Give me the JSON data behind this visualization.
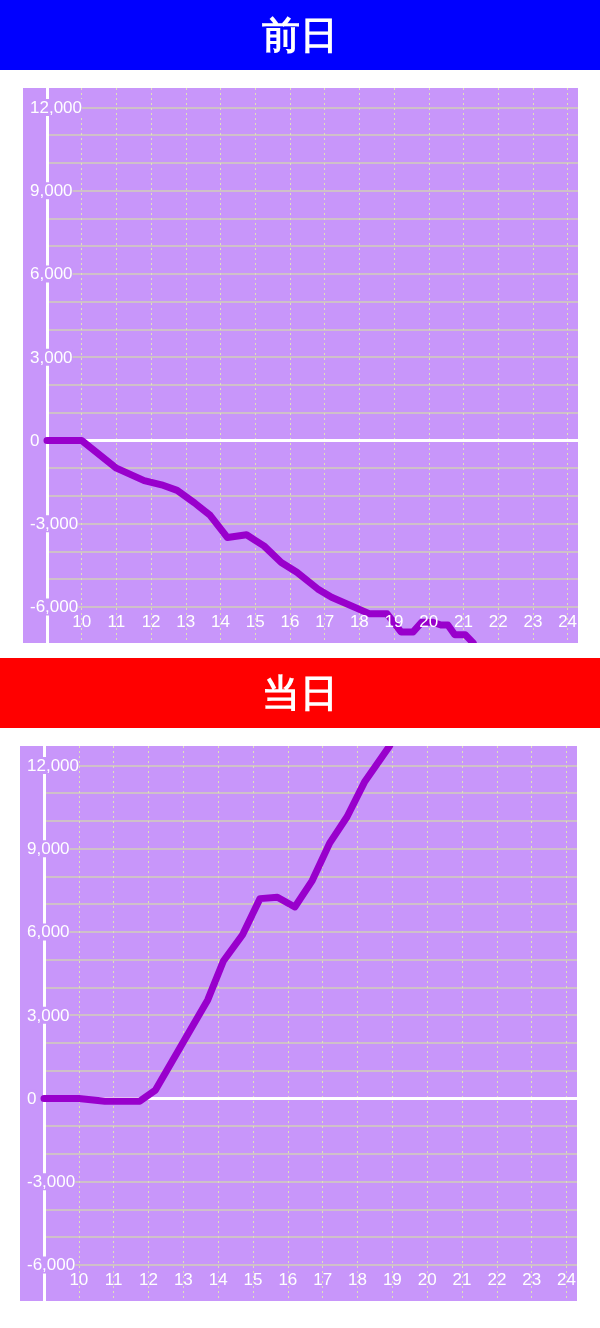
{
  "chart_data": [
    {
      "type": "line",
      "title": "前日",
      "x": [
        9,
        10,
        11,
        11.8,
        12.3,
        12.75,
        13.25,
        13.7,
        14.2,
        14.75,
        15.25,
        15.75,
        16.2,
        16.8,
        17.2,
        18.3,
        18.8,
        19.2,
        19.55,
        19.8,
        20.1,
        20.35,
        20.55,
        20.75,
        21.05,
        21.28
      ],
      "values": [
        0,
        0,
        -1000,
        -1450,
        -1600,
        -1800,
        -2250,
        -2700,
        -3500,
        -3400,
        -3800,
        -4400,
        -4750,
        -5350,
        -5650,
        -6250,
        -6250,
        -6900,
        -6900,
        -6550,
        -6550,
        -6650,
        -6650,
        -7000,
        -7000,
        -7300
      ],
      "color": "#9900cc",
      "xlim": [
        9,
        24.3
      ],
      "xticks": [
        10,
        11,
        12,
        13,
        14,
        15,
        16,
        17,
        18,
        19,
        20,
        21,
        22,
        23,
        24
      ],
      "ylim": [
        -7300,
        12700
      ],
      "yticks": [
        {
          "value": -6000,
          "label": "-6,000"
        },
        {
          "value": -5000,
          "label": null
        },
        {
          "value": -4000,
          "label": null
        },
        {
          "value": -3000,
          "label": "-3,000"
        },
        {
          "value": -2000,
          "label": null
        },
        {
          "value": -1000,
          "label": null
        },
        0,
        {
          "value": 1000,
          "label": null
        },
        {
          "value": 2000,
          "label": null
        },
        {
          "value": 3000,
          "label": "3,000"
        },
        {
          "value": 4000,
          "label": null
        },
        {
          "value": 5000,
          "label": null
        },
        {
          "value": 6000,
          "label": "6,000"
        },
        {
          "value": 7000,
          "label": null
        },
        {
          "value": 8000,
          "label": null
        },
        {
          "value": 9000,
          "label": "9,000"
        },
        {
          "value": 10000,
          "label": null
        },
        {
          "value": 11000,
          "label": null
        },
        {
          "value": 12000,
          "label": "12,000"
        }
      ],
      "grid": true,
      "marker": "none",
      "line_style": "solid",
      "ref_lines": [
        {
          "axis": "y",
          "value": 0,
          "color": "#ffffff"
        }
      ]
    },
    {
      "type": "line",
      "title": "当日",
      "x": [
        9,
        10,
        10.75,
        11.75,
        12.2,
        13.7,
        14.15,
        14.7,
        15.2,
        15.7,
        16.2,
        16.7,
        17.2,
        17.7,
        18.2,
        18.92
      ],
      "values": [
        0,
        0,
        -100,
        -100,
        300,
        3550,
        4950,
        5900,
        7200,
        7250,
        6900,
        7850,
        9200,
        10150,
        11400,
        12700
      ],
      "color": "#9900cc",
      "xlim": [
        9,
        24.3
      ],
      "xticks": [
        10,
        11,
        12,
        13,
        14,
        15,
        16,
        17,
        18,
        19,
        20,
        21,
        22,
        23,
        24
      ],
      "ylim": [
        -7300,
        12700
      ],
      "yticks": [
        {
          "value": -6000,
          "label": "-6,000"
        },
        {
          "value": -5000,
          "label": null
        },
        {
          "value": -4000,
          "label": null
        },
        {
          "value": -3000,
          "label": "-3,000"
        },
        {
          "value": -2000,
          "label": null
        },
        {
          "value": -1000,
          "label": null
        },
        0,
        {
          "value": 1000,
          "label": null
        },
        {
          "value": 2000,
          "label": null
        },
        {
          "value": 3000,
          "label": "3,000"
        },
        {
          "value": 4000,
          "label": null
        },
        {
          "value": 5000,
          "label": null
        },
        {
          "value": 6000,
          "label": "6,000"
        },
        {
          "value": 7000,
          "label": null
        },
        {
          "value": 8000,
          "label": null
        },
        {
          "value": 9000,
          "label": "9,000"
        },
        {
          "value": 10000,
          "label": null
        },
        {
          "value": 11000,
          "label": null
        },
        {
          "value": 12000,
          "label": "12,000"
        }
      ],
      "grid": true,
      "marker": "none",
      "line_style": "solid",
      "ref_lines": [
        {
          "axis": "y",
          "value": 0,
          "color": "#ffffff"
        }
      ]
    }
  ]
}
